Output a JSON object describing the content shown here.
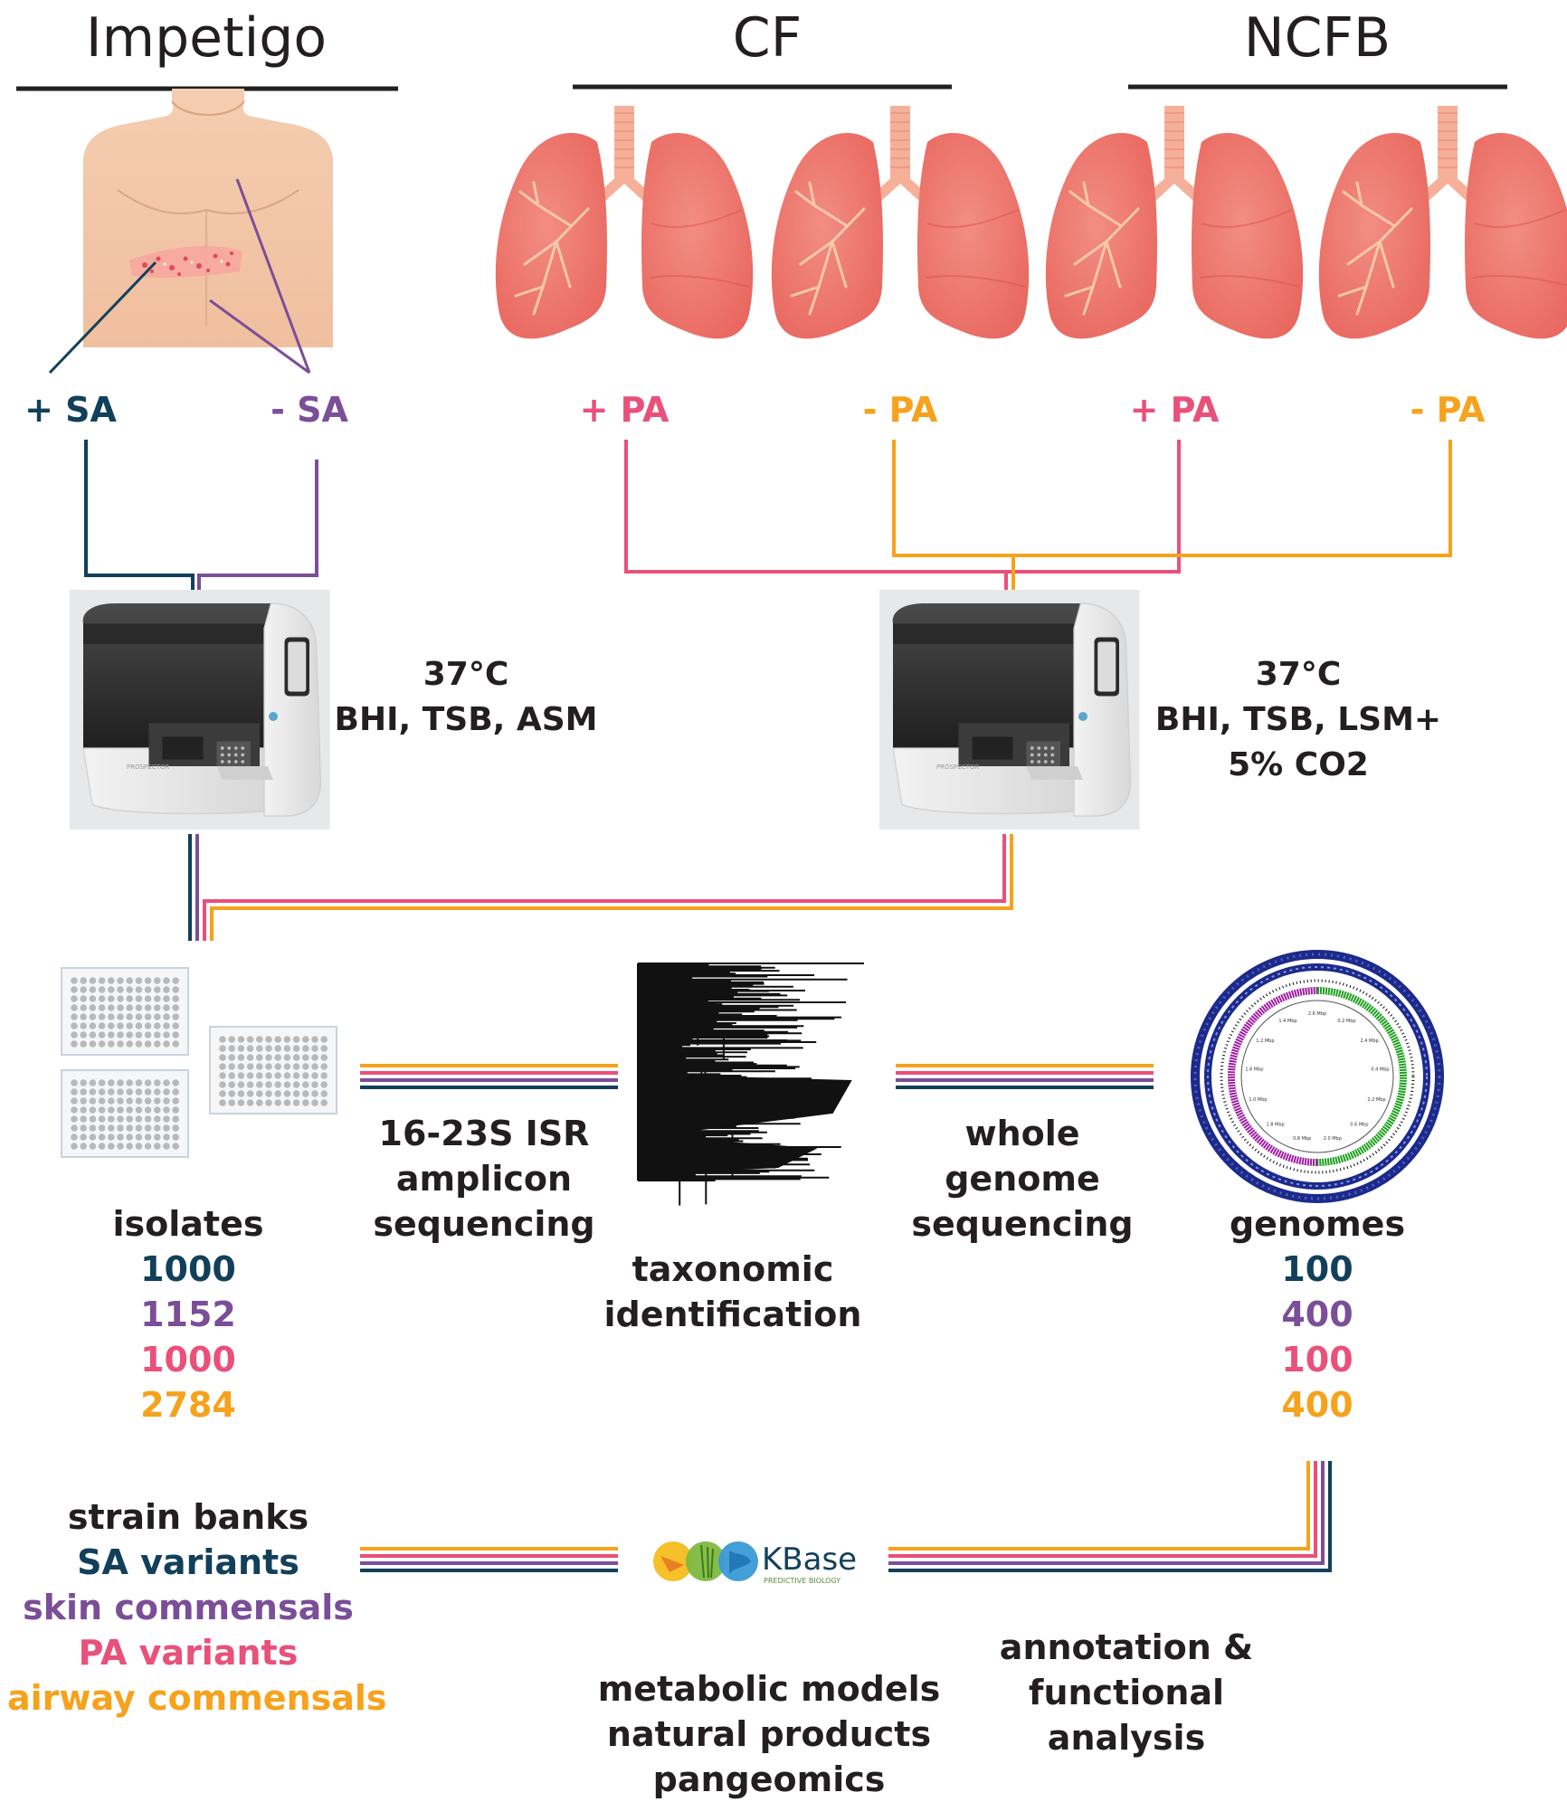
{
  "colors": {
    "sa": "#12405b",
    "skin": "#7b4e98",
    "pa": "#e9507a",
    "airway": "#f6a21c",
    "text": "#231f20"
  },
  "headers": {
    "impetigo": "Impetigo",
    "cf": "CF",
    "ncfb": "NCFB"
  },
  "groups": {
    "plus_sa": "+ SA",
    "minus_sa": "- SA",
    "cf_plus_pa": "+ PA",
    "cf_minus_pa": "- PA",
    "ncfb_plus_pa": "+ PA",
    "ncfb_minus_pa": "- PA"
  },
  "culture": {
    "left": {
      "temp": "37°C",
      "media": "BHI, TSB, ASM"
    },
    "right": {
      "temp": "37°C",
      "media": "BHI, TSB, LSM+",
      "atmosphere": "5% CO2"
    }
  },
  "isolates": {
    "label": "isolates",
    "counts": [
      "1000",
      "1152",
      "1000",
      "2784"
    ]
  },
  "steps": {
    "isr": [
      "16-23S ISR",
      "amplicon",
      "sequencing"
    ],
    "taxonomy": [
      "taxonomic",
      "identification"
    ],
    "wgs": [
      "whole",
      "genome",
      "sequencing"
    ],
    "annotation": [
      "annotation &",
      "functional",
      "analysis"
    ]
  },
  "genomes": {
    "label": "genomes",
    "counts": [
      "100",
      "400",
      "100",
      "400"
    ]
  },
  "strain_banks": {
    "label": "strain banks",
    "items": [
      "SA variants",
      "skin commensals",
      "PA variants",
      "airway commensals"
    ]
  },
  "kbase": {
    "name": "KBase",
    "tagline": "PREDICTIVE BIOLOGY"
  },
  "outputs": [
    "metabolic models",
    "natural products",
    "pangeomics"
  ],
  "instrument_label": "PROSPECTOR",
  "genome_map_labels": [
    "2.6 Mbp",
    "0.2 Mbp",
    "2.4 Mbp",
    "0.4 Mbp",
    "2.2 Mbp",
    "0.6 Mbp",
    "2.0 Mbp",
    "0.8 Mbp",
    "1.8 Mbp",
    "1.0 Mbp",
    "1.6 Mbp",
    "1.2 Mbp",
    "1.4 Mbp"
  ]
}
